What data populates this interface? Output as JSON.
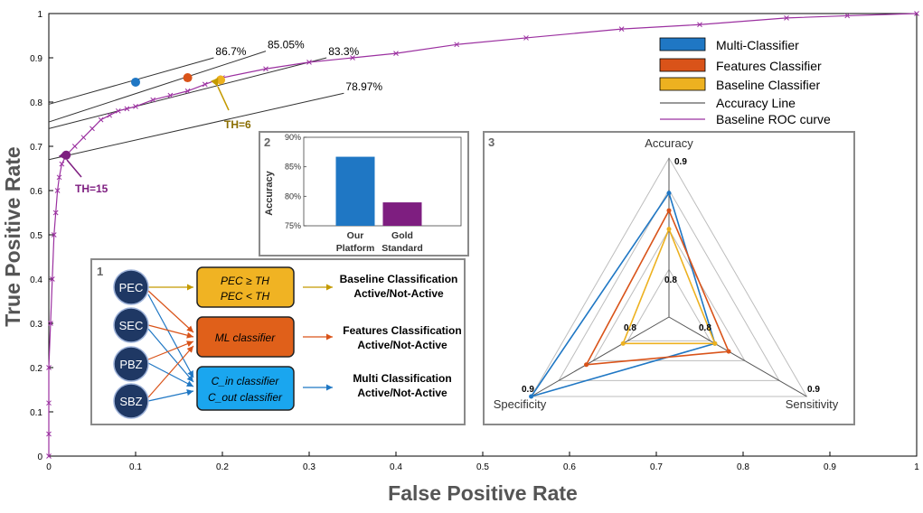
{
  "chart_data": [
    {
      "type": "line",
      "title": "",
      "xlabel": "False Positive Rate",
      "ylabel": "True Positive Rate",
      "xlim": [
        0,
        1
      ],
      "ylim": [
        0,
        1
      ],
      "x_ticks": [
        "0",
        "0.1",
        "0.2",
        "0.3",
        "0.4",
        "0.5",
        "0.6",
        "0.7",
        "0.8",
        "0.9",
        "1"
      ],
      "y_ticks": [
        "0",
        "0.1",
        "0.2",
        "0.3",
        "0.4",
        "0.5",
        "0.6",
        "0.7",
        "0.8",
        "0.9",
        "1"
      ],
      "roc_curve": {
        "name": "Baseline ROC curve",
        "color": "#9b30a0",
        "x": [
          0,
          0,
          0,
          0,
          0.002,
          0.004,
          0.006,
          0.008,
          0.01,
          0.012,
          0.015,
          0.02,
          0.03,
          0.04,
          0.05,
          0.06,
          0.07,
          0.08,
          0.09,
          0.1,
          0.12,
          0.14,
          0.16,
          0.18,
          0.2,
          0.25,
          0.3,
          0.35,
          0.4,
          0.47,
          0.55,
          0.66,
          0.75,
          0.85,
          0.92,
          1.0
        ],
        "y": [
          0,
          0.05,
          0.12,
          0.2,
          0.3,
          0.4,
          0.5,
          0.55,
          0.6,
          0.63,
          0.66,
          0.68,
          0.7,
          0.72,
          0.74,
          0.76,
          0.77,
          0.78,
          0.785,
          0.79,
          0.805,
          0.815,
          0.825,
          0.84,
          0.855,
          0.875,
          0.89,
          0.9,
          0.91,
          0.93,
          0.945,
          0.965,
          0.975,
          0.99,
          0.995,
          1.0
        ]
      },
      "points": [
        {
          "name": "Multi-Classifier",
          "x": 0.1,
          "y": 0.845,
          "color": "#1f77c4"
        },
        {
          "name": "Features Classifier",
          "x": 0.16,
          "y": 0.855,
          "color": "#d95319"
        },
        {
          "name": "Baseline Classifier",
          "x": 0.198,
          "y": 0.85,
          "color": "#edb120"
        },
        {
          "name": "TH=15 point",
          "x": 0.02,
          "y": 0.68,
          "color": "#7e1e80"
        }
      ],
      "accuracy_lines": [
        {
          "label": "86.7%",
          "x0": 0,
          "y0": 0.795,
          "x1": 0.19,
          "y1": 0.9
        },
        {
          "label": "85.05%",
          "x0": 0,
          "y0": 0.755,
          "x1": 0.25,
          "y1": 0.915
        },
        {
          "label": "83.3%",
          "x0": 0,
          "y0": 0.74,
          "x1": 0.32,
          "y1": 0.9
        },
        {
          "label": "78.97%",
          "x0": 0,
          "y0": 0.67,
          "x1": 0.34,
          "y1": 0.82
        }
      ],
      "annotations": [
        {
          "text": "TH=6",
          "color": "#8a6d00"
        },
        {
          "text": "TH=15",
          "color": "#7e1e80"
        }
      ],
      "legend": {
        "position": "top-right",
        "entries": [
          {
            "label": "Multi-Classifier",
            "color": "#1f77c4",
            "kind": "box"
          },
          {
            "label": "Features Classifier",
            "color": "#d95319",
            "kind": "box"
          },
          {
            "label": "Baseline Classifier",
            "color": "#edb120",
            "kind": "box"
          },
          {
            "label": "Accuracy Line",
            "color": "#333333",
            "kind": "line"
          },
          {
            "label": "Baseline ROC curve",
            "color": "#9b30a0",
            "kind": "line"
          }
        ]
      }
    },
    {
      "type": "bar",
      "panel": "2",
      "ylabel": "Accuracy",
      "y_ticks": [
        "75%",
        "80%",
        "85%",
        "90%"
      ],
      "ylim": [
        75,
        90
      ],
      "categories": [
        "Our Platform",
        "Gold Standard"
      ],
      "category_lines": [
        [
          "Our",
          "Platform"
        ],
        [
          "Gold",
          "Standard"
        ]
      ],
      "values": [
        86.7,
        78.97
      ],
      "colors": [
        "#1f77c4",
        "#7e1e80"
      ]
    },
    {
      "type": "radar",
      "panel": "3",
      "axes": [
        "Accuracy",
        "Sensitivity",
        "Specificity"
      ],
      "rmin": 0.75,
      "rmax": 0.9,
      "outer_labels": [
        "0.9",
        "0.9",
        "0.9"
      ],
      "inner_labels": [
        "0.8",
        "0.8",
        "0.8"
      ],
      "series": [
        {
          "name": "Multi-Classifier",
          "color": "#1f77c4",
          "values": [
            0.867,
            0.8,
            0.9
          ]
        },
        {
          "name": "Features Classifier",
          "color": "#d95319",
          "values": [
            0.8505,
            0.815,
            0.84
          ]
        },
        {
          "name": "Baseline Classifier",
          "color": "#edb120",
          "values": [
            0.833,
            0.8,
            0.8
          ]
        }
      ]
    }
  ],
  "flow_panel": {
    "number": "1",
    "inputs": [
      "PEC",
      "SEC",
      "PBZ",
      "SBZ"
    ],
    "classifiers": [
      {
        "lines": [
          "PEC ≥ TH",
          "PEC < TH"
        ],
        "color": "#f0b323",
        "result": [
          "Baseline Classification",
          "Active/Not-Active"
        ]
      },
      {
        "lines": [
          "ML classifier"
        ],
        "color": "#e0601a",
        "result": [
          "Features Classification",
          "Active/Not-Active"
        ]
      },
      {
        "lines": [
          "C_in classifier",
          "C_out classifier"
        ],
        "color": "#1aa6ef",
        "result": [
          "Multi Classification",
          "Active/Not-Active"
        ]
      }
    ]
  }
}
